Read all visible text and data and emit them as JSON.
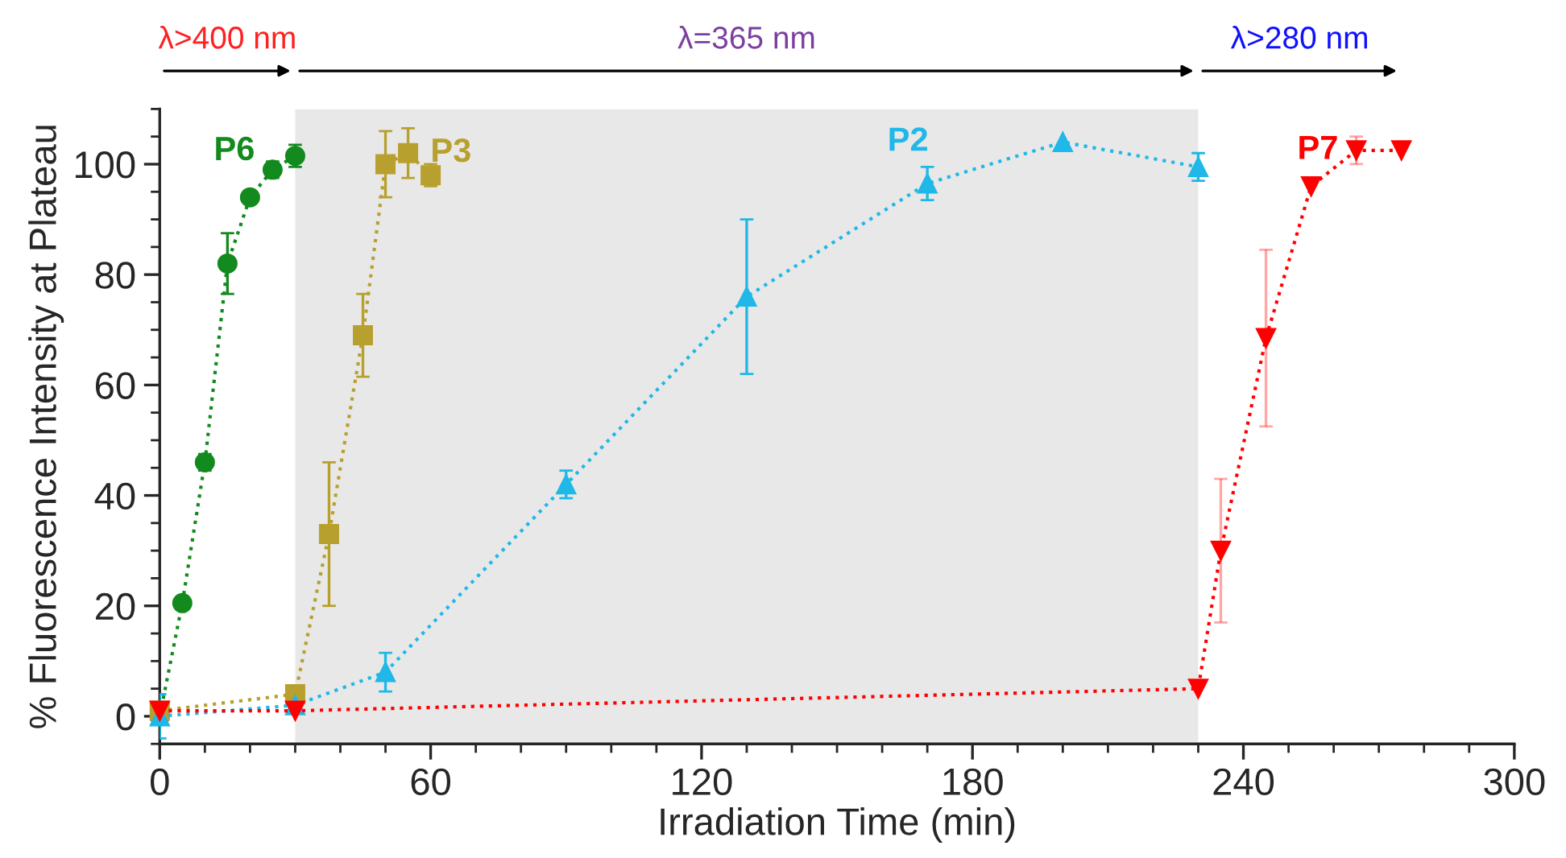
{
  "chart_data": {
    "type": "line",
    "xlabel": "Irradiation Time (min)",
    "ylabel": "% Fluorescence Intensity at Plateau",
    "xlim": [
      0,
      300
    ],
    "xticks": [
      0,
      60,
      120,
      180,
      240,
      300
    ],
    "ylim": [
      -5,
      110
    ],
    "yticks": [
      0,
      20,
      40,
      60,
      80,
      100
    ],
    "grid": false,
    "legend": false,
    "line_style": "dotted",
    "series": [
      {
        "name": "P6",
        "color": "#138a1e",
        "marker": "circle",
        "x": [
          0,
          5,
          10,
          15,
          20,
          25,
          30
        ],
        "values": [
          0,
          20.5,
          46,
          82,
          94,
          99,
          101.5
        ],
        "errors": [
          null,
          null,
          1.5,
          5.5,
          null,
          1.5,
          2
        ]
      },
      {
        "name": "P3",
        "color": "#b8a02e",
        "marker": "square",
        "x": [
          0,
          30,
          37.5,
          45,
          50,
          55,
          60
        ],
        "values": [
          1,
          4,
          33,
          69,
          100,
          102,
          98
        ],
        "errors": [
          null,
          1.5,
          13,
          7.5,
          6,
          4.5,
          2
        ]
      },
      {
        "name": "P2",
        "color": "#1fb8e8",
        "marker": "triangle",
        "x": [
          0,
          30,
          50,
          90,
          130,
          170,
          200,
          230
        ],
        "values": [
          0,
          2,
          8,
          42,
          76,
          96.5,
          104,
          99.5
        ],
        "errors": [
          4,
          null,
          3.5,
          2.5,
          14,
          3,
          null,
          2.5
        ]
      },
      {
        "name": "P7",
        "color": "#ff0000",
        "marker": "triangle_down",
        "x": [
          0,
          30,
          230,
          235,
          245,
          255,
          265,
          275
        ],
        "values": [
          1,
          1,
          5,
          30,
          68.5,
          96,
          102.5,
          102.5
        ],
        "errors": [
          null,
          null,
          null,
          13,
          16,
          null,
          2.5,
          null
        ]
      }
    ],
    "bands": [
      {
        "axis": "x",
        "from": 30,
        "to": 230,
        "label": "λ=365 nm",
        "color": "#e8e8e8"
      }
    ],
    "annotations": [
      "λ>400 nm",
      "λ>280 nm"
    ]
  }
}
